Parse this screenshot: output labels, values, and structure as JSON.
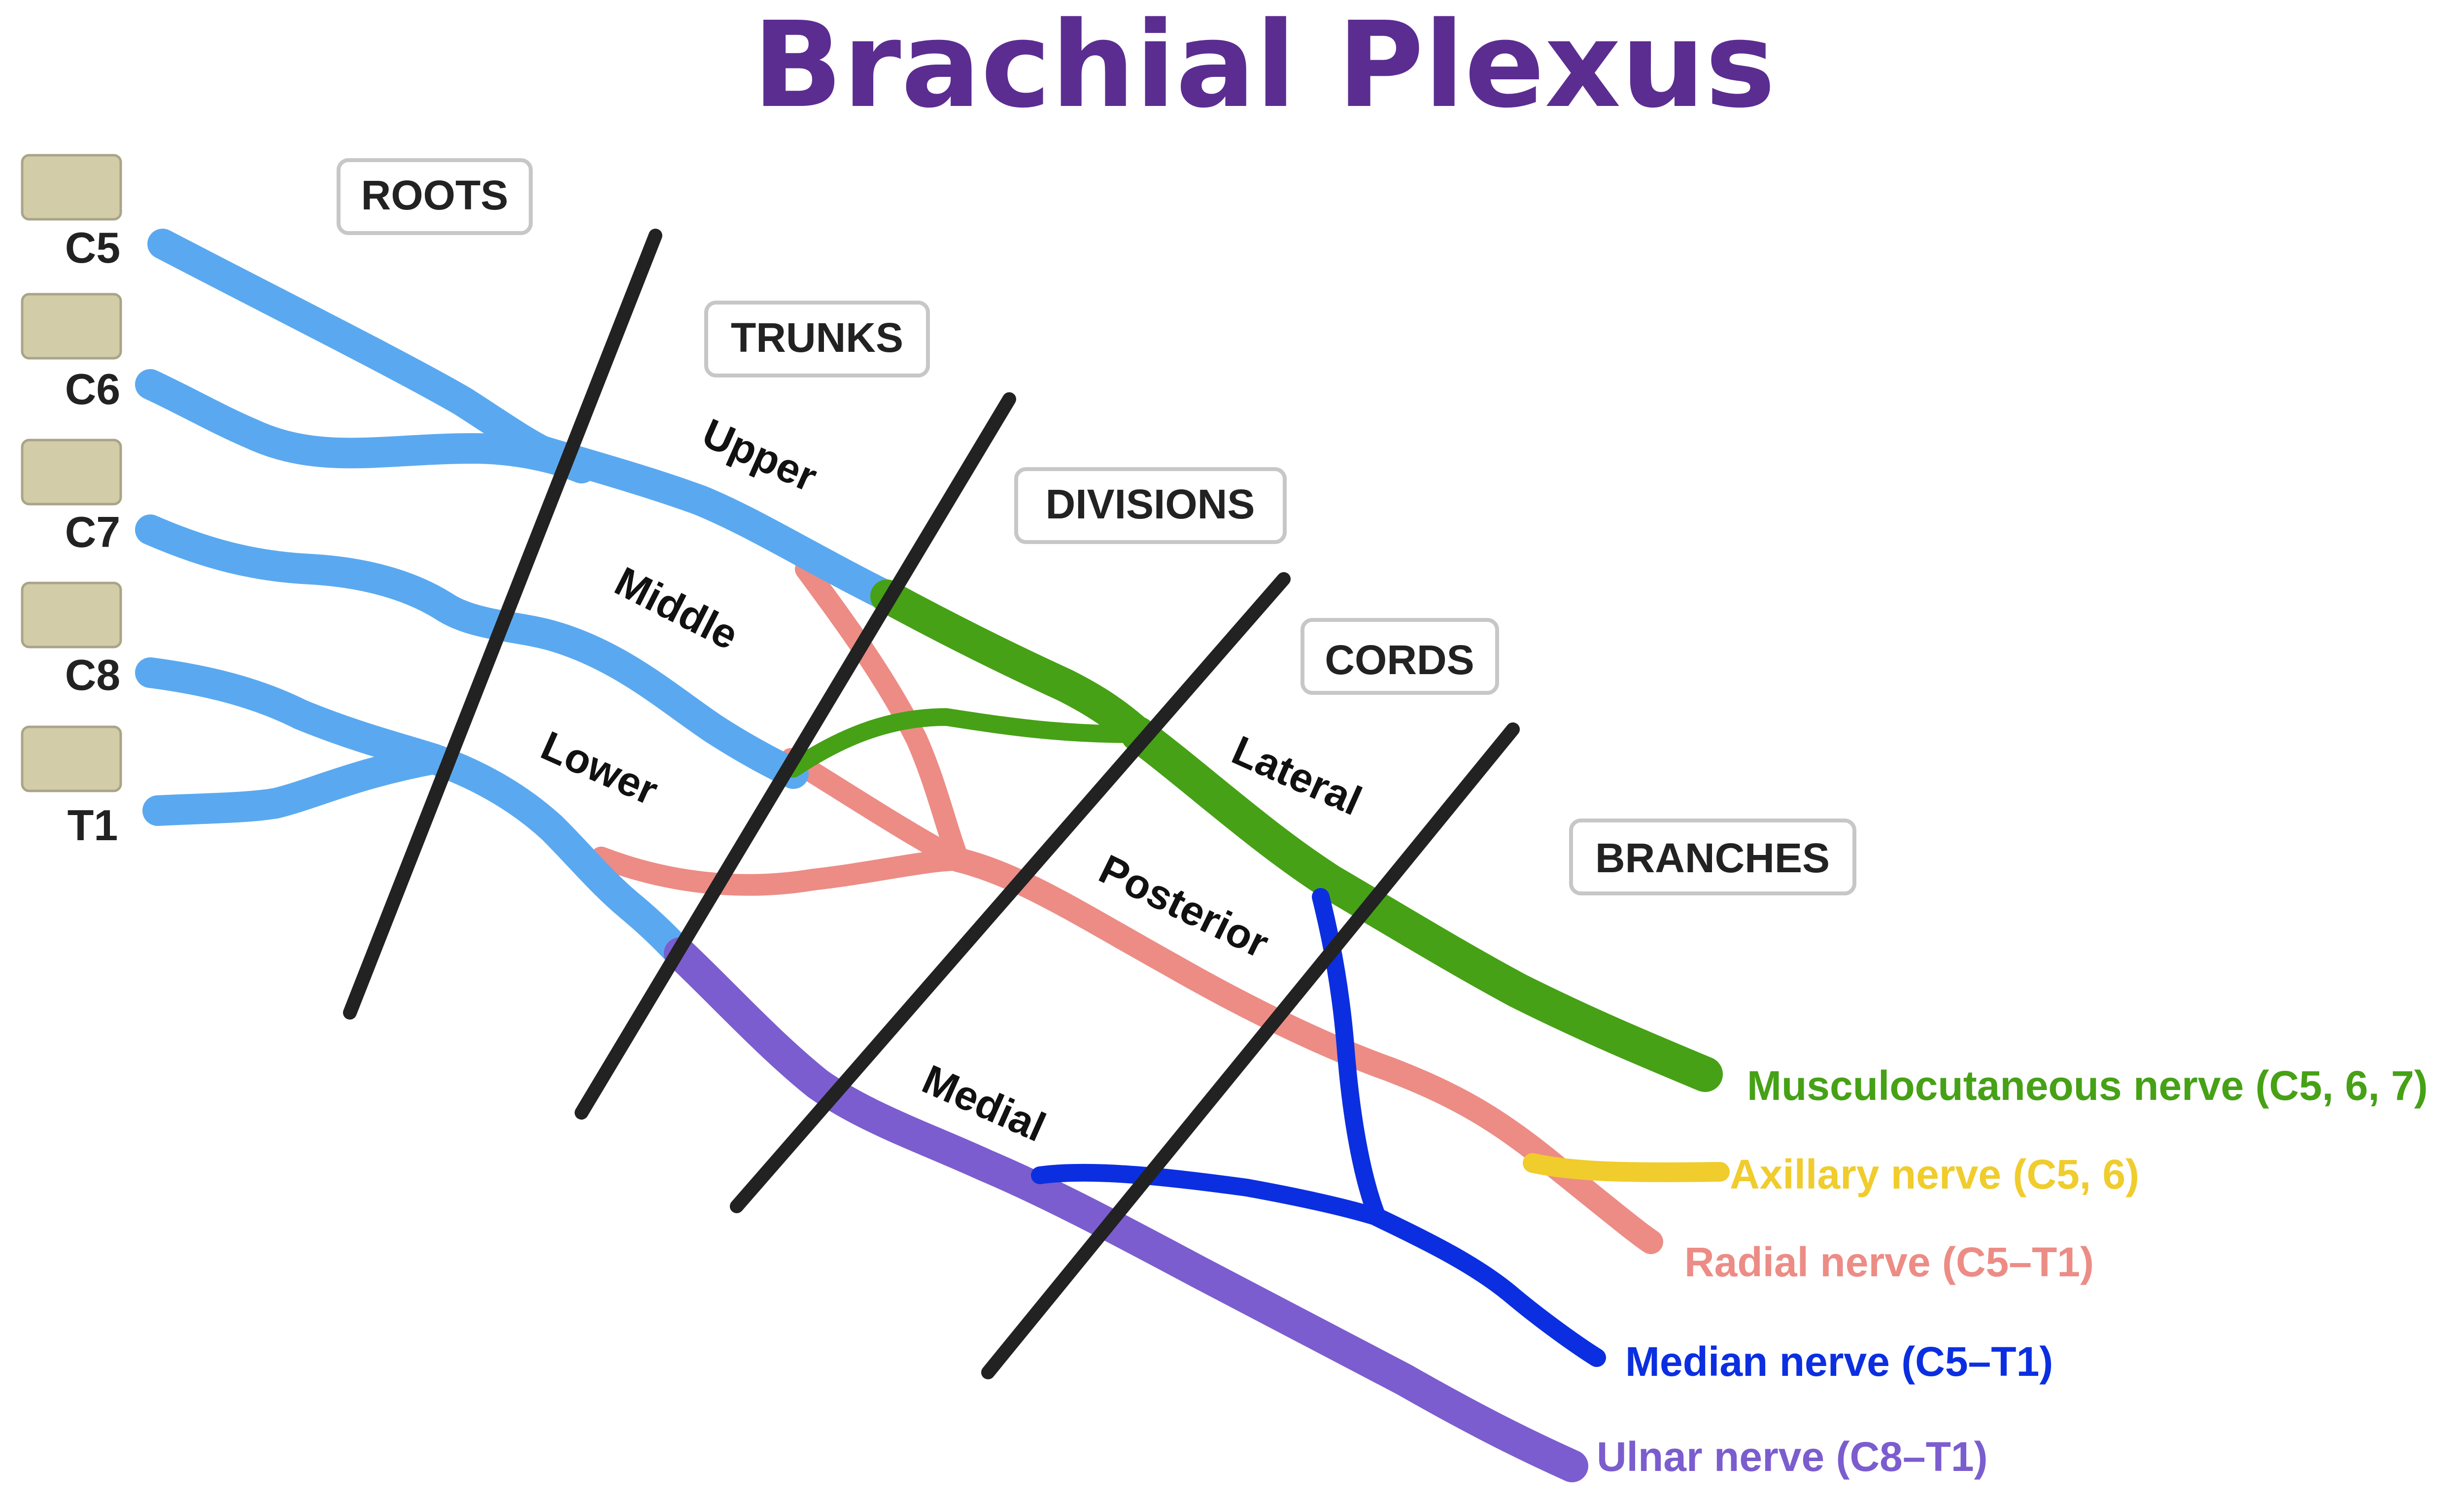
{
  "title": "Brachial Plexus",
  "colors": {
    "title": "#5b2d91",
    "roots_trunks": "#5aa9f0",
    "lateral": "#46a116",
    "posterior": "#ec8c85",
    "medial": "#7b5dcf",
    "median": "#0b2fe0",
    "axillary": "#f0cc2c",
    "divider": "#222222",
    "vertebra": "#d2cda8"
  },
  "vertebrae": [
    "C5",
    "C6",
    "C7",
    "C8",
    "T1"
  ],
  "sections": [
    "ROOTS",
    "TRUNKS",
    "DIVISIONS",
    "CORDS",
    "BRANCHES"
  ],
  "trunks": [
    "Upper",
    "Middle",
    "Lower"
  ],
  "cords": [
    "Lateral",
    "Posterior",
    "Medial"
  ],
  "branches": [
    {
      "name": "Musculocutaneous nerve (C5, 6, 7)",
      "color": "#46a116"
    },
    {
      "name": "Axillary nerve (C5, 6)",
      "color": "#f0cc2c"
    },
    {
      "name": "Radial nerve (C5–T1)",
      "color": "#ec8c85"
    },
    {
      "name": "Median nerve (C5–T1)",
      "color": "#0b2fe0"
    },
    {
      "name": "Ulnar nerve (C8–T1)",
      "color": "#7b5dcf"
    }
  ]
}
